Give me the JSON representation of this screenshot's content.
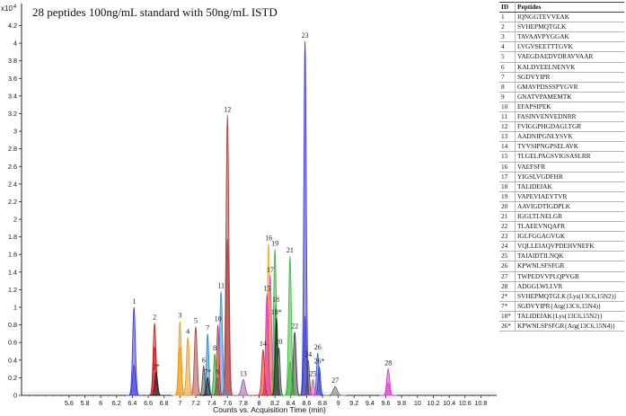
{
  "chart_data": {
    "type": "line",
    "title": "28 peptides 100ng/mL standard with 50ng/mL ISTD",
    "xlabel": "Counts vs. Acquisition Time (min)",
    "y_multiplier_label": "x10",
    "y_multiplier_exp": "4",
    "xlim": [
      5.0,
      11.0
    ],
    "ylim": [
      0,
      4.45
    ],
    "x_ticks": [
      "5.6",
      "5.8",
      "6",
      "6.2",
      "6.4",
      "6.6",
      "6.8",
      "7",
      "7.2",
      "7.4",
      "7.6",
      "7.8",
      "8",
      "8.2",
      "8.4",
      "8.6",
      "8.8",
      "9",
      "9.2",
      "9.4",
      "9.6",
      "9.8",
      "10",
      "10.2",
      "10.4",
      "10.6",
      "10.8"
    ],
    "y_ticks": [
      "0",
      "0.2",
      "0.4",
      "0.6",
      "0.8",
      "1",
      "1.2",
      "1.4",
      "1.6",
      "1.8",
      "2",
      "2.2",
      "2.4",
      "2.6",
      "2.8",
      "3",
      "3.2",
      "3.4",
      "3.6",
      "3.8",
      "4",
      "4.2"
    ],
    "peaks": [
      {
        "label": "1",
        "rt": 6.42,
        "height": 1.0,
        "color": "#3f3fdc",
        "width": 0.035
      },
      {
        "label": "",
        "rt": 6.42,
        "height": 0.34,
        "color": "#3f3fdc",
        "width": 0.035
      },
      {
        "label": "2",
        "rt": 6.68,
        "height": 0.82,
        "color": "#d82020",
        "width": 0.035
      },
      {
        "label": "",
        "rt": 6.68,
        "height": 0.55,
        "color": "#d82020",
        "width": 0.035
      },
      {
        "label": "2*",
        "rt": 6.7,
        "height": 0.26,
        "color": "#202020",
        "width": 0.035
      },
      {
        "label": "3",
        "rt": 7.0,
        "height": 0.84,
        "color": "#f0a020",
        "width": 0.035
      },
      {
        "label": "",
        "rt": 7.0,
        "height": 0.55,
        "color": "#f0a020",
        "width": 0.035
      },
      {
        "label": "4",
        "rt": 7.1,
        "height": 0.66,
        "color": "#e89830",
        "width": 0.035
      },
      {
        "label": "5",
        "rt": 7.2,
        "height": 0.78,
        "color": "#b04848",
        "width": 0.035
      },
      {
        "label": "6",
        "rt": 7.3,
        "height": 0.33,
        "color": "#505050",
        "width": 0.03
      },
      {
        "label": "7",
        "rt": 7.35,
        "height": 0.7,
        "color": "#2a8ad8",
        "width": 0.03
      },
      {
        "label": "7*",
        "rt": 7.35,
        "height": 0.2,
        "color": "#202020",
        "width": 0.03
      },
      {
        "label": "8",
        "rt": 7.44,
        "height": 0.47,
        "color": "#38a838",
        "width": 0.03
      },
      {
        "label": "9",
        "rt": 7.47,
        "height": 0.2,
        "color": "#806040",
        "width": 0.03
      },
      {
        "label": "10",
        "rt": 7.48,
        "height": 0.8,
        "color": "#d03030",
        "width": 0.03
      },
      {
        "label": "11",
        "rt": 7.52,
        "height": 1.18,
        "color": "#3a8ee0",
        "width": 0.035
      },
      {
        "label": "12",
        "rt": 7.6,
        "height": 3.18,
        "color": "#b04040",
        "width": 0.035
      },
      {
        "label": "",
        "rt": 7.6,
        "height": 1.78,
        "color": "#b04040",
        "width": 0.035
      },
      {
        "label": "13",
        "rt": 7.8,
        "height": 0.18,
        "color": "#9a60b0",
        "width": 0.045
      },
      {
        "label": "14",
        "rt": 8.05,
        "height": 0.52,
        "color": "#d82a2a",
        "width": 0.035
      },
      {
        "label": "15",
        "rt": 8.1,
        "height": 1.15,
        "color": "#e030c0",
        "width": 0.035
      },
      {
        "label": "16",
        "rt": 8.12,
        "height": 1.72,
        "color": "#f0a830",
        "width": 0.035
      },
      {
        "label": "",
        "rt": 8.12,
        "height": 1.2,
        "color": "#f0a830",
        "width": 0.035
      },
      {
        "label": "17",
        "rt": 8.14,
        "height": 1.36,
        "color": "#e050d0",
        "width": 0.035
      },
      {
        "label": "19",
        "rt": 8.2,
        "height": 1.66,
        "color": "#40b840",
        "width": 0.035
      },
      {
        "label": "18",
        "rt": 8.21,
        "height": 1.02,
        "color": "#40a040",
        "width": 0.03
      },
      {
        "label": "18*",
        "rt": 8.22,
        "height": 0.88,
        "color": "#202020",
        "width": 0.03
      },
      {
        "label": "20",
        "rt": 8.25,
        "height": 0.54,
        "color": "#505050",
        "width": 0.03
      },
      {
        "label": "21",
        "rt": 8.39,
        "height": 1.58,
        "color": "#40c040",
        "width": 0.035
      },
      {
        "label": "",
        "rt": 8.39,
        "height": 0.38,
        "color": "#40c040",
        "width": 0.035
      },
      {
        "label": "22",
        "rt": 8.45,
        "height": 0.72,
        "color": "#404040",
        "width": 0.035
      },
      {
        "label": "23",
        "rt": 8.58,
        "height": 4.02,
        "color": "#3c3cd0",
        "width": 0.03
      },
      {
        "label": "",
        "rt": 8.58,
        "height": 0.9,
        "color": "#3c3cd0",
        "width": 0.03
      },
      {
        "label": "24",
        "rt": 8.62,
        "height": 0.4,
        "color": "#505050",
        "width": 0.03
      },
      {
        "label": "25",
        "rt": 8.68,
        "height": 0.18,
        "color": "#e050c0",
        "width": 0.03
      },
      {
        "label": "26",
        "rt": 8.74,
        "height": 0.48,
        "color": "#3a6ad8",
        "width": 0.03
      },
      {
        "label": "26*",
        "rt": 8.76,
        "height": 0.32,
        "color": "#3a3ac0",
        "width": 0.03
      },
      {
        "label": "27",
        "rt": 8.96,
        "height": 0.1,
        "color": "#707070",
        "width": 0.05
      },
      {
        "label": "28",
        "rt": 9.63,
        "height": 0.3,
        "color": "#e040c8",
        "width": 0.035
      },
      {
        "label": "",
        "rt": 9.63,
        "height": 0.14,
        "color": "#e040c8",
        "width": 0.035
      }
    ],
    "grid": false,
    "legend": "table top-right"
  },
  "table": {
    "header": {
      "id": "ID",
      "peptide": "Peptides"
    },
    "rows": [
      {
        "id": "1",
        "peptide": "IQNGGTEVVEAK"
      },
      {
        "id": "2",
        "peptide": "SVHEPMQTGLK"
      },
      {
        "id": "3",
        "peptide": "TAVAAVPYGGAK"
      },
      {
        "id": "4",
        "peptide": "LVGVSEETTTGVK"
      },
      {
        "id": "5",
        "peptide": "VAEGDAEDVDRAVVAAR"
      },
      {
        "id": "6",
        "peptide": "KALDYEELNENVK"
      },
      {
        "id": "7",
        "peptide": "SGDVYIPR"
      },
      {
        "id": "8",
        "peptide": "GMAVPDSSSPYGVR"
      },
      {
        "id": "9",
        "peptide": "GNATVPAMEMTK"
      },
      {
        "id": "10",
        "peptide": "EFAPSIPEK"
      },
      {
        "id": "11",
        "peptide": "FASINVENVEDNRR"
      },
      {
        "id": "12",
        "peptide": "FVIGGPHGDAGLTGR"
      },
      {
        "id": "13",
        "peptide": "AADNIPGNLYSVK"
      },
      {
        "id": "14",
        "peptide": "TVVSIPNGPSELAVK"
      },
      {
        "id": "15",
        "peptide": "TLGELPAGSVIGSASLRR"
      },
      {
        "id": "16",
        "peptide": "VAEFSFR"
      },
      {
        "id": "17",
        "peptide": "YIGSLVGDFHR"
      },
      {
        "id": "18",
        "peptide": "TALIDEIAK"
      },
      {
        "id": "19",
        "peptide": "VAPEVIAEYTVR"
      },
      {
        "id": "20",
        "peptide": "AAVIGDTIGDPLK"
      },
      {
        "id": "21",
        "peptide": "IGGLTLNELGR"
      },
      {
        "id": "22",
        "peptide": "TLAEEVNQAFR"
      },
      {
        "id": "23",
        "peptide": "IGLFGGAGVGK"
      },
      {
        "id": "24",
        "peptide": "VQLLEIAQVPDEHVNEFK"
      },
      {
        "id": "25",
        "peptide": "TAIAIDTILNQK"
      },
      {
        "id": "26",
        "peptide": "KPWNLSFSFGR"
      },
      {
        "id": "27",
        "peptide": "TWPEDVVPLQPVGR"
      },
      {
        "id": "28",
        "peptide": "ADGGLWLLVR"
      }
    ],
    "istd_rows": [
      {
        "id": "2*",
        "peptide": "SVHEPMQTGLK{Lys(13C6,15N2)}"
      },
      {
        "id": "7*",
        "peptide": "SGDVYIPR{Arg(13C6,15N4)}"
      },
      {
        "id": "18*",
        "peptide": "TALIDEIAK{Lys(13C6,15N2)}"
      },
      {
        "id": "26*",
        "peptide": "KPWNLSFSFGR{Arg(13C6,15N4)}"
      }
    ]
  }
}
